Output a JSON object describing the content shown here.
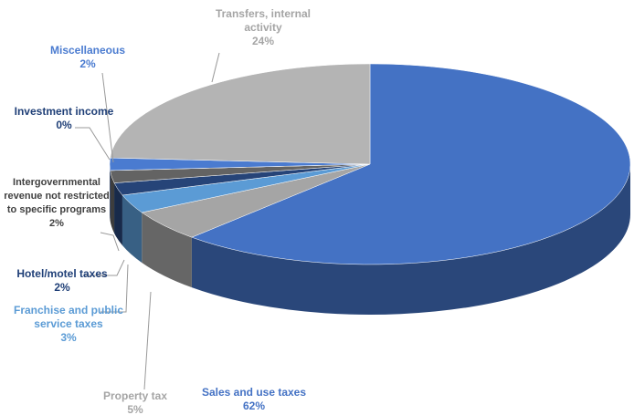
{
  "chart_data": {
    "type": "pie3d",
    "categories": [
      "Sales and use taxes",
      "Property tax",
      "Franchise and public service taxes",
      "Hotel/motel taxes",
      "Intergovernmental revenue not restricted to specific programs",
      "Investment income",
      "Miscellaneous",
      "Transfers, internal activity"
    ],
    "values": [
      62,
      5,
      3,
      2,
      2,
      0,
      2,
      24
    ],
    "value_labels": [
      "62%",
      "5%",
      "3%",
      "2%",
      "2%",
      "0%",
      "2%",
      "24%"
    ],
    "colors": [
      "#4472c4",
      "#a5a5a5",
      "#5b9bd5",
      "#264478",
      "#636363",
      "#255e91",
      "#4a7bd0",
      "#b4b4b4"
    ]
  }
}
